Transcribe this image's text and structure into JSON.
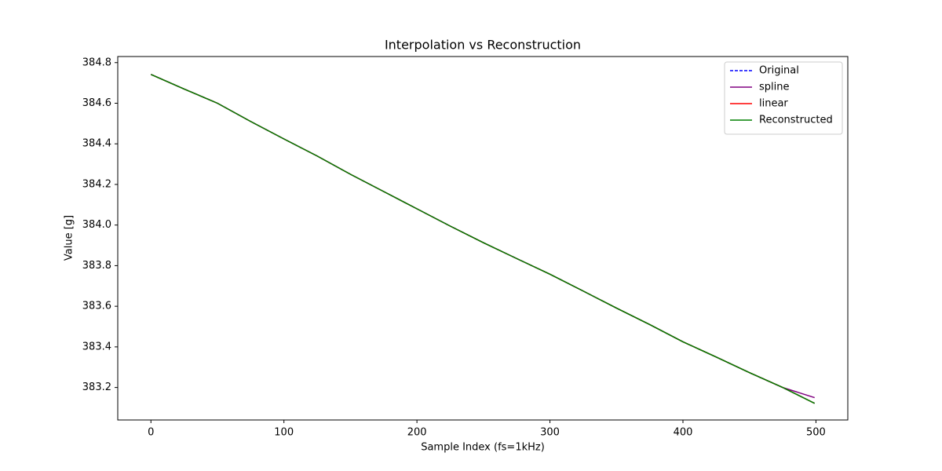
{
  "chart_data": {
    "type": "line",
    "title": "Interpolation vs Reconstruction",
    "x_label": "Sample Index (fs=1kHz)",
    "y_label": "Value [g]",
    "x": [
      0,
      25,
      50,
      75,
      100,
      125,
      150,
      175,
      200,
      225,
      250,
      275,
      300,
      325,
      350,
      375,
      400,
      425,
      450,
      475,
      499
    ],
    "series": [
      {
        "name": "Original",
        "color": "#0000ff",
        "linestyle": "dashed",
        "values": [
          384.742,
          384.67,
          384.6,
          384.51,
          384.424,
          384.34,
          384.25,
          384.165,
          384.08,
          383.995,
          383.913,
          383.835,
          383.758,
          383.675,
          383.591,
          383.51,
          383.425,
          383.35,
          383.273,
          383.2,
          383.122
        ]
      },
      {
        "name": "spline",
        "color": "#800080",
        "linestyle": "solid",
        "values": [
          384.742,
          384.67,
          384.6,
          384.51,
          384.424,
          384.34,
          384.25,
          384.165,
          384.08,
          383.995,
          383.913,
          383.835,
          383.758,
          383.675,
          383.591,
          383.51,
          383.425,
          383.35,
          383.273,
          383.2,
          383.15
        ]
      },
      {
        "name": "linear",
        "color": "#ff0000",
        "linestyle": "solid",
        "values": [
          384.742,
          384.67,
          384.6,
          384.51,
          384.424,
          384.34,
          384.25,
          384.165,
          384.08,
          383.995,
          383.913,
          383.835,
          383.758,
          383.675,
          383.591,
          383.51,
          383.425,
          383.35,
          383.273,
          383.2,
          383.122
        ]
      },
      {
        "name": "Reconstructed",
        "color": "#008000",
        "linestyle": "solid",
        "values": [
          384.742,
          384.67,
          384.6,
          384.51,
          384.424,
          384.34,
          384.25,
          384.165,
          384.08,
          383.995,
          383.913,
          383.835,
          383.758,
          383.675,
          383.591,
          383.51,
          383.425,
          383.35,
          383.273,
          383.2,
          383.122
        ]
      }
    ],
    "xlim": [
      -24.95,
      523.95
    ],
    "xticks": [
      0,
      100,
      200,
      300,
      400,
      500
    ],
    "ylim": [
      383.04,
      384.83
    ],
    "yticks": [
      383.2,
      383.4,
      383.6,
      383.8,
      {
        "value": 384,
        "label": "384.0"
      },
      384.2,
      384.4,
      384.6,
      384.8
    ],
    "grid": false,
    "legend": "upper-right"
  }
}
